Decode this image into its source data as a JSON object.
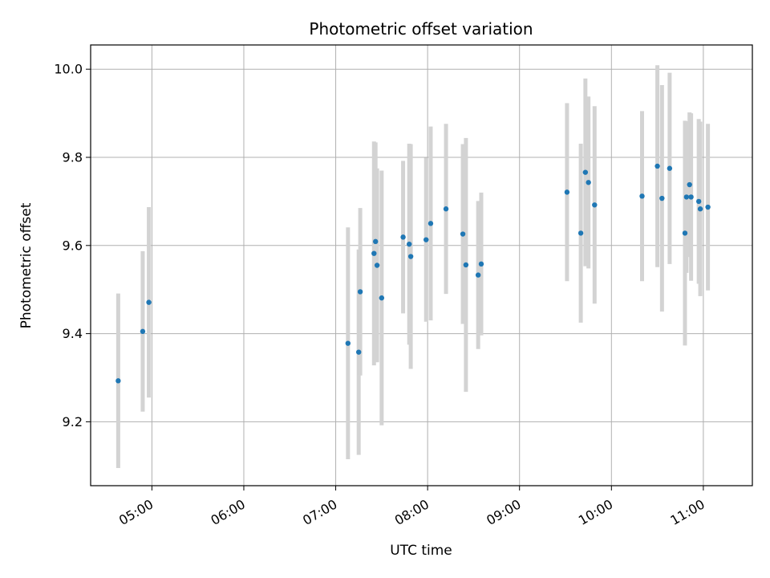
{
  "chart_data": {
    "type": "scatter",
    "title": "Photometric offset variation",
    "xlabel": "UTC time",
    "ylabel": "Photometric offset",
    "xlim": [
      "04:20",
      "11:32"
    ],
    "ylim": [
      9.055,
      10.055
    ],
    "grid": true,
    "x_ticks": [
      "05:00",
      "06:00",
      "07:00",
      "08:00",
      "09:00",
      "10:00",
      "11:00"
    ],
    "y_ticks": [
      "9.2",
      "9.4",
      "9.6",
      "9.8",
      "10.0"
    ],
    "colors": {
      "points": "#1f77b4",
      "errorbars": "#d3d3d3",
      "grid": "#b0b0b0"
    },
    "series": [
      {
        "x": [
          "04:38",
          "04:54",
          "04:58",
          "07:08",
          "07:15",
          "07:16",
          "07:25",
          "07:26",
          "07:27",
          "07:30",
          "07:44",
          "07:48",
          "07:49",
          "07:59",
          "08:02",
          "08:12",
          "08:23",
          "08:25",
          "08:33",
          "08:35",
          "09:31",
          "09:40",
          "09:43",
          "09:45",
          "09:49",
          "10:20",
          "10:30",
          "10:33",
          "10:38",
          "10:48",
          "10:49",
          "10:51",
          "10:52",
          "10:57",
          "10:58",
          "11:03"
        ],
        "y": [
          9.293,
          9.405,
          9.471,
          9.378,
          9.358,
          9.495,
          9.582,
          9.609,
          9.555,
          9.481,
          9.619,
          9.603,
          9.575,
          9.613,
          9.65,
          9.683,
          9.626,
          9.556,
          9.533,
          9.558,
          9.721,
          9.628,
          9.766,
          9.743,
          9.692,
          9.712,
          9.78,
          9.707,
          9.775,
          9.628,
          9.71,
          9.738,
          9.71,
          9.7,
          9.683,
          9.687
        ],
        "yerr": [
          0.198,
          0.182,
          0.216,
          0.263,
          0.233,
          0.19,
          0.254,
          0.225,
          0.22,
          0.289,
          0.173,
          0.228,
          0.255,
          0.186,
          0.22,
          0.193,
          0.204,
          0.288,
          0.168,
          0.162,
          0.202,
          0.203,
          0.213,
          0.195,
          0.224,
          0.193,
          0.229,
          0.257,
          0.217,
          0.255,
          0.172,
          0.164,
          0.19,
          0.187,
          0.198,
          0.189
        ]
      }
    ]
  }
}
